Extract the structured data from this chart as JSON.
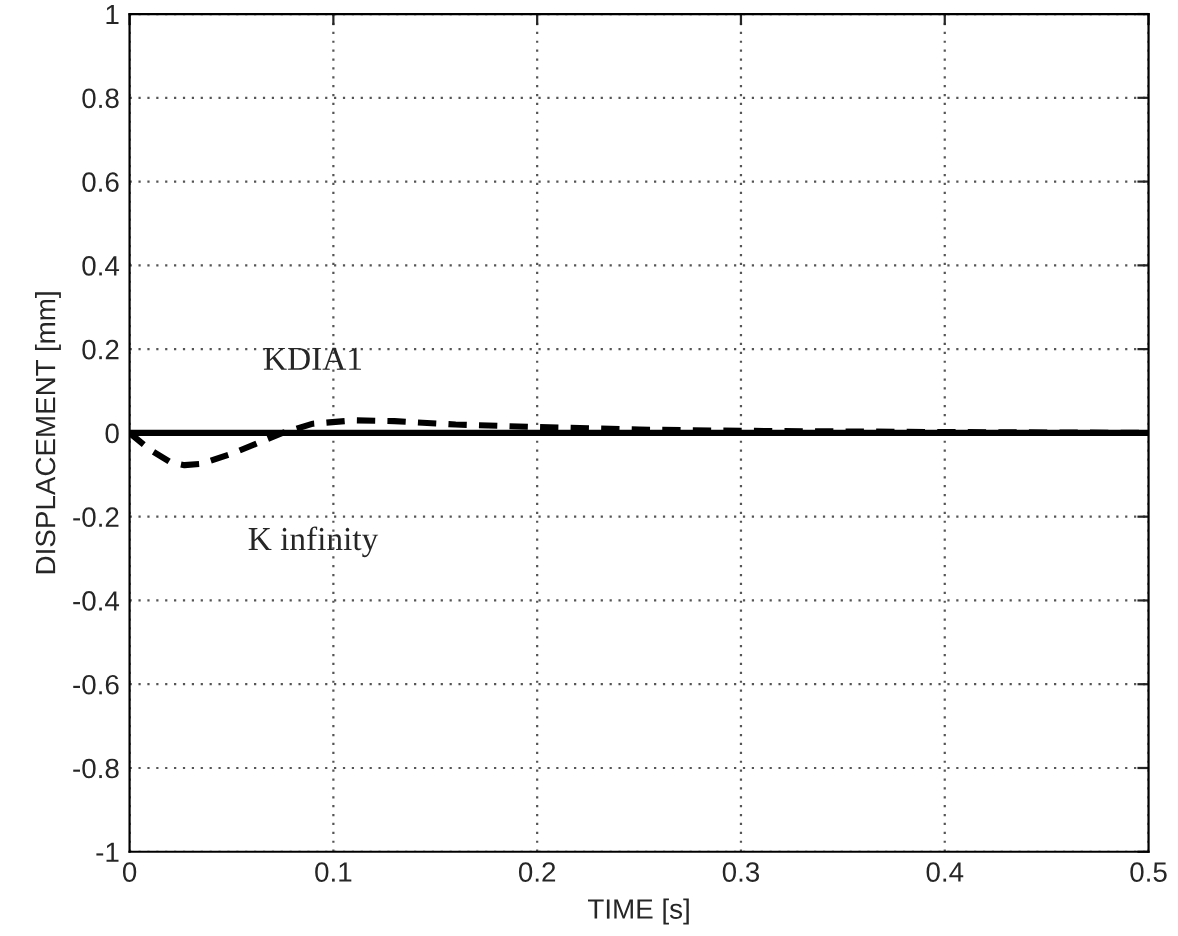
{
  "chart_data": {
    "type": "line",
    "xlabel": "TIME [s]",
    "ylabel": "DISPLACEMENT [mm]",
    "xlim": [
      0,
      0.5
    ],
    "ylim": [
      -1,
      1
    ],
    "xticks": [
      0,
      0.1,
      0.2,
      0.3,
      0.4,
      0.5
    ],
    "yticks": [
      -1,
      -0.8,
      -0.6,
      -0.4,
      -0.2,
      0,
      0.2,
      0.4,
      0.6,
      0.8,
      1
    ],
    "grid": true,
    "marker": "none",
    "annotations": [
      "KDIA1",
      "K infinity"
    ],
    "series": [
      {
        "color": "#000000",
        "line_style": "solid",
        "x": [
          0,
          0.05,
          0.1,
          0.2,
          0.3,
          0.4,
          0.5
        ],
        "values": [
          0,
          0,
          0,
          0,
          0,
          0,
          0
        ]
      },
      {
        "color": "#000000",
        "line_style": "dashed",
        "x": [
          0,
          0.01,
          0.02,
          0.027,
          0.035,
          0.05,
          0.065,
          0.075,
          0.09,
          0.11,
          0.13,
          0.16,
          0.2,
          0.25,
          0.3,
          0.4,
          0.5
        ],
        "values": [
          0,
          -0.04,
          -0.07,
          -0.077,
          -0.074,
          -0.05,
          -0.02,
          0,
          0.022,
          0.03,
          0.028,
          0.02,
          0.014,
          0.008,
          0.005,
          0.002,
          0
        ]
      }
    ]
  }
}
